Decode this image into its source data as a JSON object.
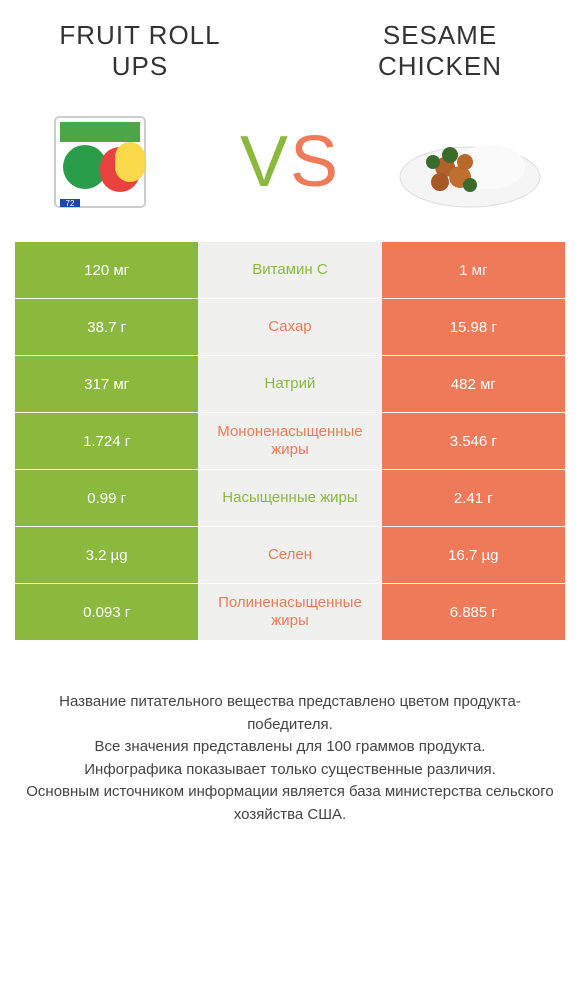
{
  "header": {
    "left_title": "Fruit Roll ups",
    "right_title": "Sesame chicken"
  },
  "vs": {
    "v": "V",
    "s": "S"
  },
  "colors": {
    "green": "#8bb93e",
    "orange": "#ee7a59",
    "mid_bg": "#f0f0ee",
    "text": "#333333"
  },
  "rows": [
    {
      "left": "120 мг",
      "mid": "Витамин C",
      "winner": "green",
      "right": "1 мг"
    },
    {
      "left": "38.7 г",
      "mid": "Сахар",
      "winner": "orange",
      "right": "15.98 г"
    },
    {
      "left": "317 мг",
      "mid": "Натрий",
      "winner": "green",
      "right": "482 мг"
    },
    {
      "left": "1.724 г",
      "mid": "Мононенасыщенные жиры",
      "winner": "orange",
      "right": "3.546 г"
    },
    {
      "left": "0.99 г",
      "mid": "Насыщенные жиры",
      "winner": "green",
      "right": "2.41 г"
    },
    {
      "left": "3.2 µg",
      "mid": "Селен",
      "winner": "orange",
      "right": "16.7 µg"
    },
    {
      "left": "0.093 г",
      "mid": "Полиненасыщенные жиры",
      "winner": "orange",
      "right": "6.885 г"
    }
  ],
  "footer": {
    "line1": "Название питательного вещества представлено цветом продукта-победителя.",
    "line2": "Все значения представлены для 100 граммов продукта.",
    "line3": "Инфографика показывает только существенные различия.",
    "line4": "Основным источником информации является база министерства сельского хозяйства США."
  }
}
